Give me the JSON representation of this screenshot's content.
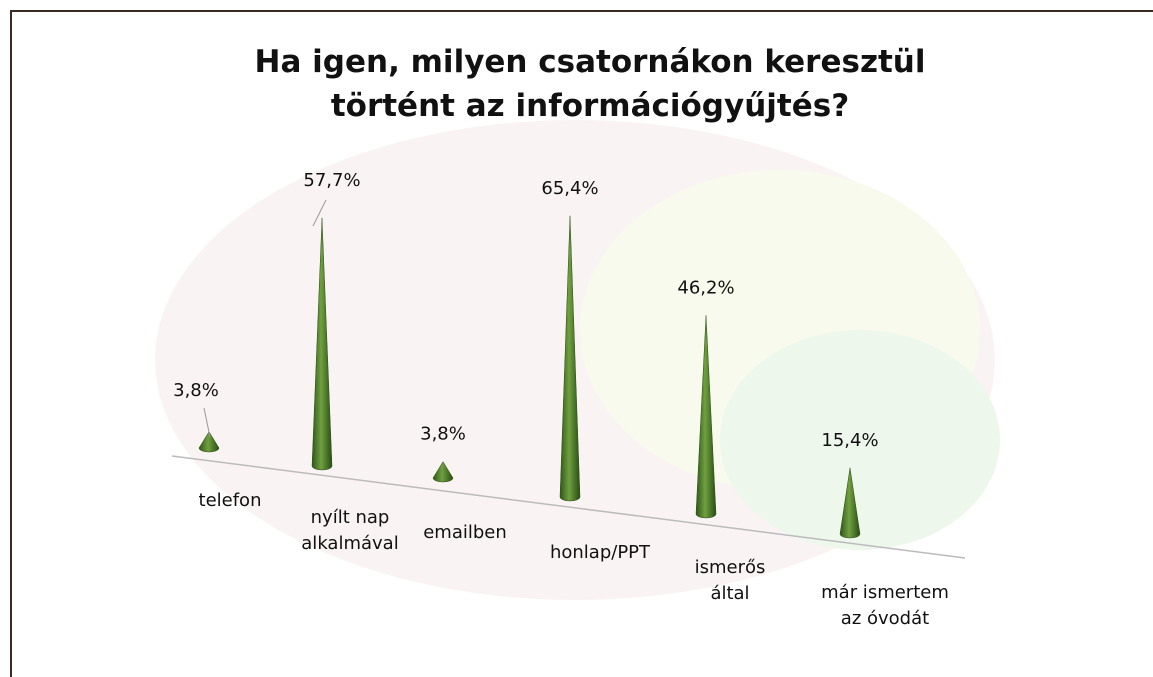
{
  "chart_data": {
    "type": "cone",
    "title": "Ha igen, milyen csatornákon keresztül történt az információgyűjtés?",
    "categories": [
      "telefon",
      "nyílt nap alkalmával",
      "emailben",
      "honlap/PPT",
      "ismerős által",
      "már ismertem az óvodát"
    ],
    "values": [
      3.8,
      57.7,
      3.8,
      65.4,
      46.2,
      15.4
    ],
    "value_labels": [
      "3,8%",
      "57,7%",
      "3,8%",
      "65,4%",
      "46,2%",
      "15,4%"
    ],
    "color": "#4f7f2a"
  }
}
